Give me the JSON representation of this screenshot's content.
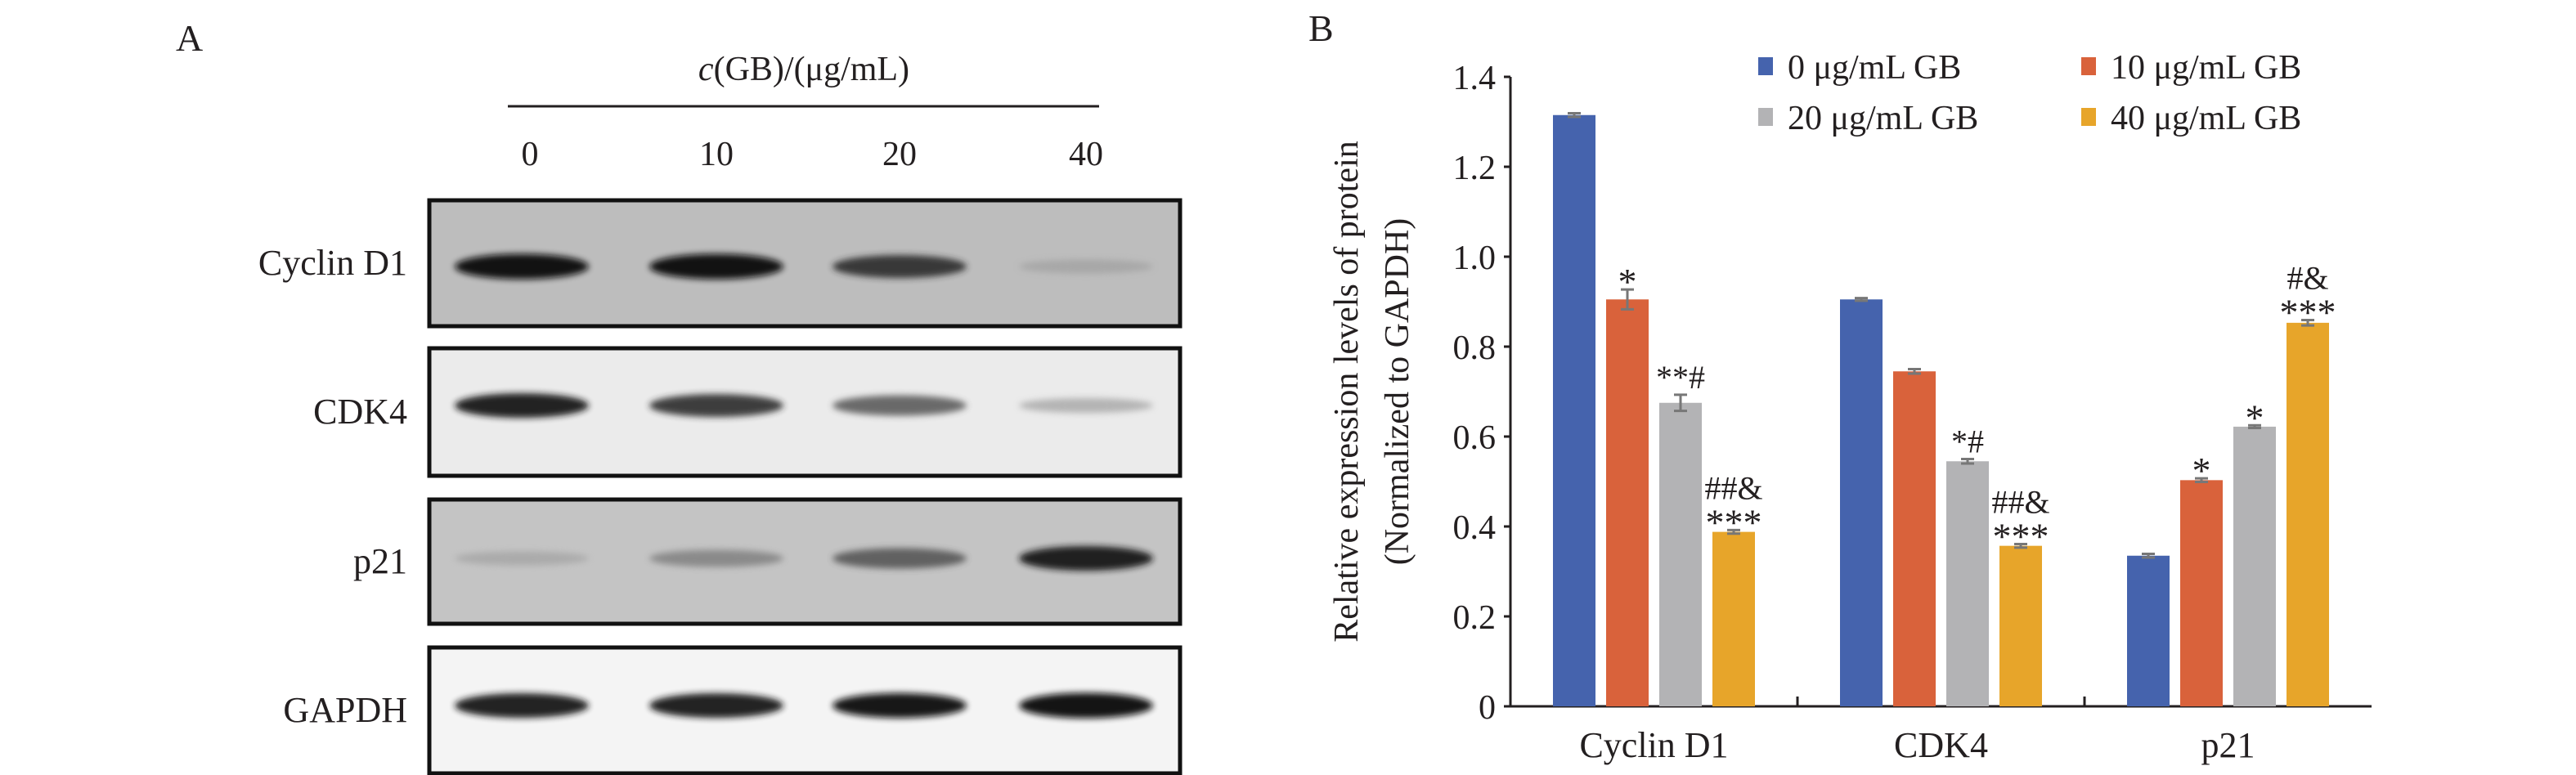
{
  "panel_a": {
    "label": "A",
    "concentration_title_prefix": "c",
    "concentration_title_rest": "(GB)/(μg/mL)",
    "lanes": [
      "0",
      "10",
      "20",
      "40"
    ],
    "rows": [
      {
        "label": "Cyclin D1",
        "background": "#bdbdbd",
        "band_intensity": [
          0.95,
          0.95,
          0.8,
          0.25
        ]
      },
      {
        "label": "CDK4",
        "background": "#ebebeb",
        "band_intensity": [
          0.9,
          0.8,
          0.65,
          0.3
        ]
      },
      {
        "label": "p21",
        "background": "#c4c4c4",
        "band_intensity": [
          0.25,
          0.45,
          0.65,
          0.9
        ]
      },
      {
        "label": "GAPDH",
        "background": "#f4f4f4",
        "band_intensity": [
          0.9,
          0.9,
          0.92,
          0.95
        ]
      }
    ]
  },
  "panel_b": {
    "label": "B"
  },
  "chart_data": {
    "type": "bar",
    "ylabel_line1": "Relative expression levels of protein",
    "ylabel_line2": "(Normalized to GAPDH)",
    "xlabel": "",
    "ylim": [
      0,
      1.4
    ],
    "yticks": [
      "0",
      "0.2",
      "0.4",
      "0.6",
      "0.8",
      "1.0",
      "1.2",
      "1.4"
    ],
    "grid": false,
    "legend_position": "top-right",
    "categories": [
      "Cyclin D1",
      "CDK4",
      "p21"
    ],
    "series": [
      {
        "name": "0 μg/mL GB",
        "color": "#4563ad",
        "values": [
          1.315,
          0.905,
          0.335
        ],
        "errors": [
          0.004,
          0.003,
          0.004
        ],
        "annotations": [
          [],
          [],
          []
        ]
      },
      {
        "name": "10 μg/mL GB",
        "color": "#d9623b",
        "values": [
          0.905,
          0.745,
          0.503
        ],
        "errors": [
          0.022,
          0.005,
          0.004
        ],
        "annotations": [
          [
            "*"
          ],
          [],
          [
            "*"
          ]
        ]
      },
      {
        "name": "20 μg/mL GB",
        "color": "#b3b3b5",
        "values": [
          0.675,
          0.545,
          0.622
        ],
        "errors": [
          0.018,
          0.005,
          0.003
        ],
        "annotations": [
          [
            "**#"
          ],
          [
            "*#"
          ],
          [
            "*"
          ]
        ]
      },
      {
        "name": "40 μg/mL GB",
        "color": "#e7a52a",
        "values": [
          0.388,
          0.357,
          0.853
        ],
        "errors": [
          0.004,
          0.004,
          0.006
        ],
        "annotations": [
          [
            "##&",
            "***"
          ],
          [
            "##&",
            "***"
          ],
          [
            "#&",
            "***"
          ]
        ]
      }
    ]
  }
}
